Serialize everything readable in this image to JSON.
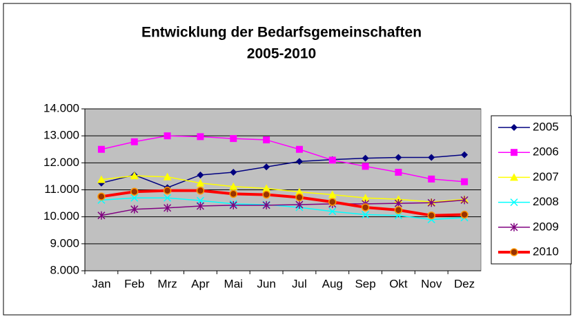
{
  "chart_data": {
    "type": "line",
    "title": [
      "Entwicklung der Bedarfsgemeinschaften",
      "2005-2010"
    ],
    "categories": [
      "Jan",
      "Feb",
      "Mrz",
      "Apr",
      "Mai",
      "Jun",
      "Jul",
      "Aug",
      "Sep",
      "Okt",
      "Nov",
      "Dez"
    ],
    "ylim": [
      8000,
      14000
    ],
    "yticks": [
      {
        "value": 8000,
        "label": "8.000"
      },
      {
        "value": 9000,
        "label": "9.000"
      },
      {
        "value": 10000,
        "label": "10.000"
      },
      {
        "value": 11000,
        "label": "11.000"
      },
      {
        "value": 12000,
        "label": "12.000"
      },
      {
        "value": 13000,
        "label": "13.000"
      },
      {
        "value": 14000,
        "label": "14.000"
      }
    ],
    "grid": true,
    "plot_background": "#c0c0c0",
    "legend": "right",
    "series": [
      {
        "name": "2005",
        "color": "#000080",
        "marker": "diamond",
        "line_width": 1.5,
        "values": [
          11250,
          11550,
          11080,
          11550,
          11650,
          11850,
          12050,
          12120,
          12170,
          12200,
          12200,
          12300
        ]
      },
      {
        "name": "2006",
        "color": "#ff00ff",
        "marker": "square",
        "line_width": 1.5,
        "values": [
          12500,
          12780,
          13000,
          12970,
          12900,
          12850,
          12500,
          12100,
          11870,
          11650,
          11400,
          11300
        ]
      },
      {
        "name": "2007",
        "color": "#ffff00",
        "marker": "triangle",
        "line_width": 1.5,
        "values": [
          11380,
          11520,
          11480,
          11250,
          11120,
          11050,
          10920,
          10820,
          10700,
          10650,
          10550,
          10650
        ]
      },
      {
        "name": "2008",
        "color": "#00ffff",
        "marker": "x",
        "line_width": 1.5,
        "values": [
          10620,
          10700,
          10700,
          10600,
          10480,
          10450,
          10350,
          10200,
          10080,
          10050,
          9900,
          9970
        ]
      },
      {
        "name": "2009",
        "color": "#800080",
        "marker": "star",
        "line_width": 1.5,
        "values": [
          10050,
          10280,
          10330,
          10400,
          10430,
          10430,
          10450,
          10480,
          10480,
          10500,
          10520,
          10620
        ]
      },
      {
        "name": "2010",
        "color": "#ff0000",
        "marker": "circle",
        "line_width": 4,
        "values": [
          10750,
          10930,
          10970,
          10970,
          10850,
          10820,
          10720,
          10550,
          10350,
          10250,
          10050,
          10080
        ]
      }
    ]
  }
}
